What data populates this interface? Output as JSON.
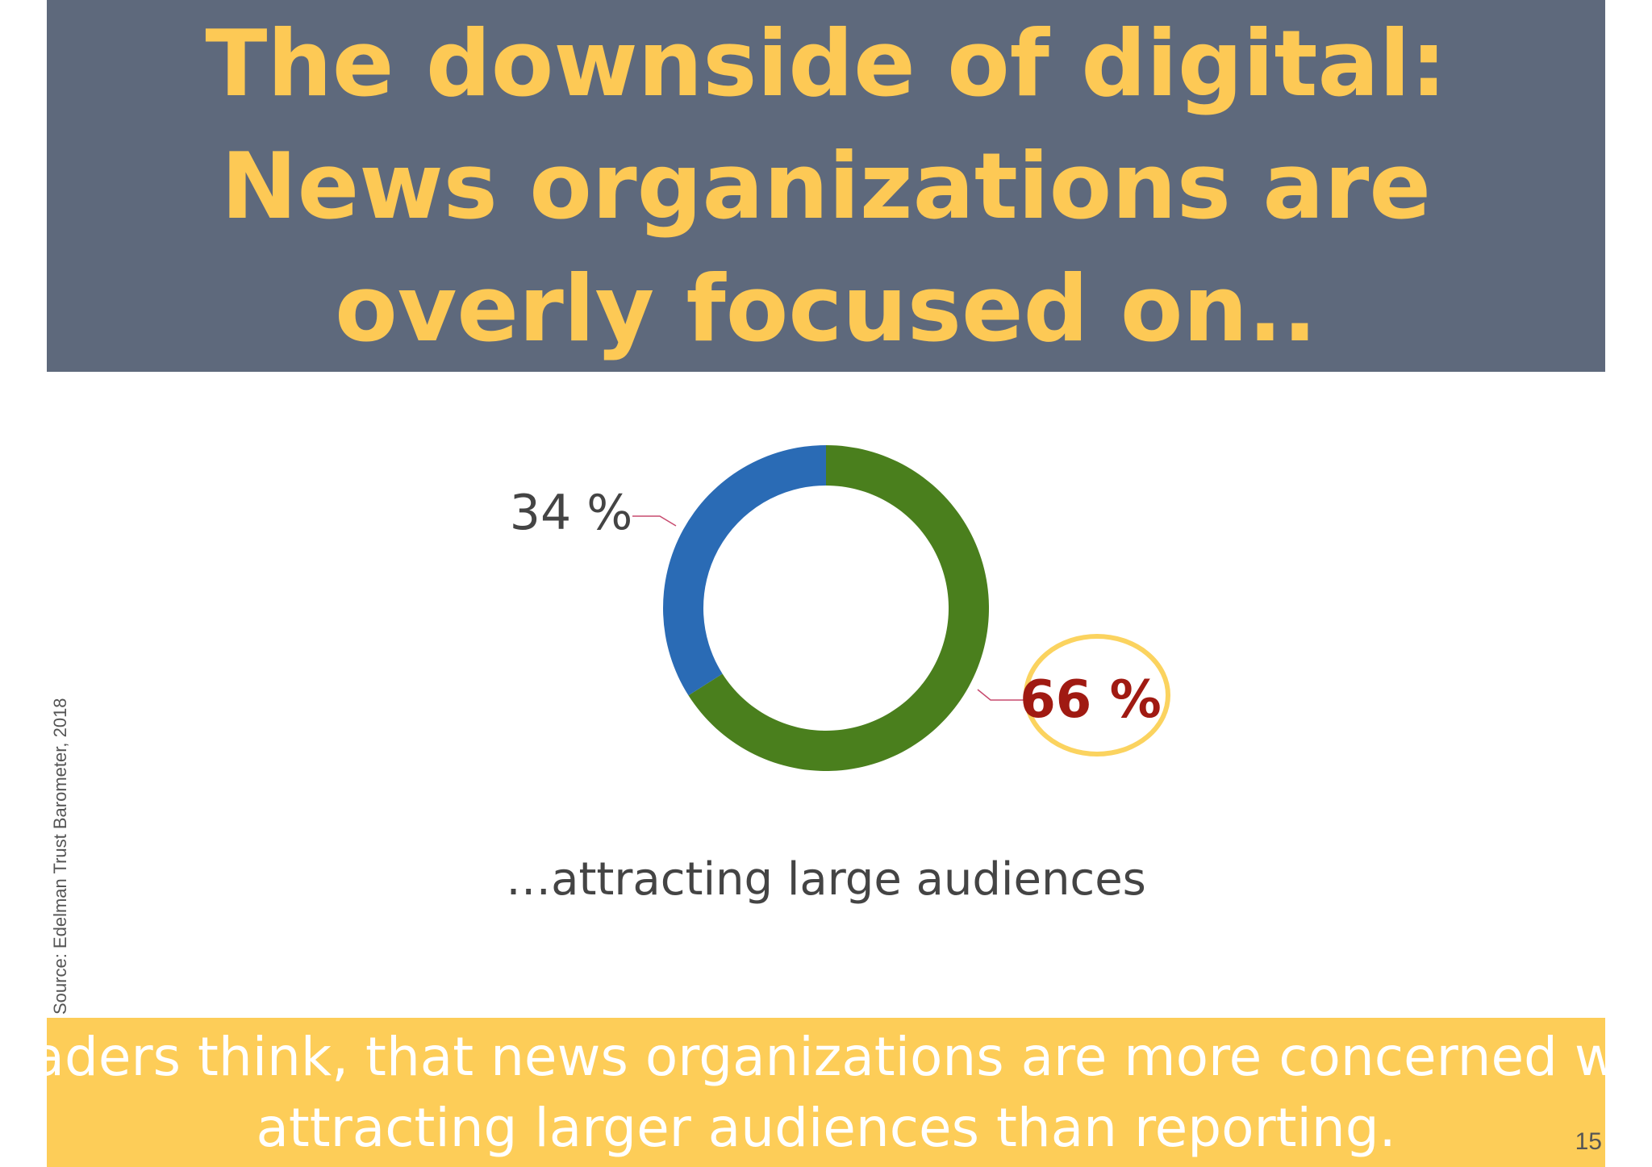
{
  "title": {
    "lines": [
      "The downside of digital:",
      "News organizations are",
      "overly focused on.."
    ]
  },
  "chart_data": {
    "type": "pie",
    "variant": "donut",
    "values": [
      66,
      34
    ],
    "labels": [
      "66 %",
      "34 %"
    ],
    "colors": [
      "#4a7f1d",
      "#2a6bb5"
    ],
    "highlight_index": 0,
    "highlight_color": "#fbd35f",
    "highlight_label_color": "#a01a12",
    "leader_line_color": "#c74a6e"
  },
  "caption": "…attracting large audiences",
  "source": "Source: Edelman Trust Barometer, 2018",
  "footer": {
    "lines": [
      "Readers think, that news organizations are more concerned with",
      "attracting larger audiences than reporting."
    ]
  },
  "page_number": "15"
}
